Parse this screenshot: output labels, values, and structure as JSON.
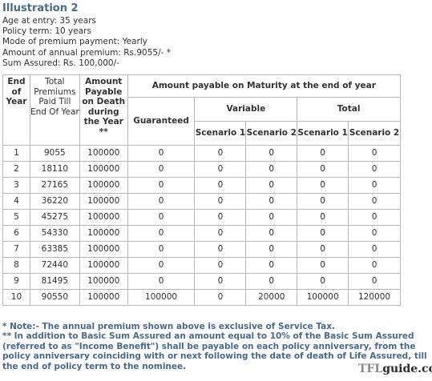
{
  "title": "Illustration 2",
  "info": [
    "Age at entry: 35 years",
    "Policy term: 10 years",
    "Mode of premium payment: Yearly",
    "Amount of annual premium: Rs.9055/- *",
    "Sum Assured: Rs. 100,000/-"
  ],
  "table": {
    "headers": {
      "end_of_year": "End of Year",
      "total_premiums": "Total Premiums Paid Till End Of Year",
      "amount_on_death": "Amount Payable on Death during the Year **",
      "maturity": "Amount payable on Maturity at the end of year",
      "guaranteed": "Guaranteed",
      "variable": "Variable",
      "total": "Total",
      "scenario1": "Scenario 1",
      "scenario2": "Scenario 2"
    },
    "rows": [
      [
        "1",
        "9055",
        "100000",
        "0",
        "0",
        "0",
        "0",
        "0"
      ],
      [
        "2",
        "18110",
        "100000",
        "0",
        "0",
        "0",
        "0",
        "0"
      ],
      [
        "3",
        "27165",
        "100000",
        "0",
        "0",
        "0",
        "0",
        "0"
      ],
      [
        "4",
        "36220",
        "100000",
        "0",
        "0",
        "0",
        "0",
        "0"
      ],
      [
        "5",
        "45275",
        "100000",
        "0",
        "0",
        "0",
        "0",
        "0"
      ],
      [
        "6",
        "54330",
        "100000",
        "0",
        "0",
        "0",
        "0",
        "0"
      ],
      [
        "7",
        "63385",
        "100000",
        "0",
        "0",
        "0",
        "0",
        "0"
      ],
      [
        "8",
        "72440",
        "100000",
        "0",
        "0",
        "0",
        "0",
        "0"
      ],
      [
        "9",
        "81495",
        "100000",
        "0",
        "0",
        "0",
        "0",
        "0"
      ],
      [
        "10",
        "90550",
        "100000",
        "100000",
        "0",
        "20000",
        "100000",
        "120000"
      ]
    ]
  },
  "notes": {
    "note1": "* Note:- The annual premium shown above is exclusive of Service Tax.",
    "note2": "** In addition to Basic Sum Assured an amount equal to 10% of the Basic Sum Assured (referred to as \"Income Benefit\") shall be payable on each policy anniversary, from the policy anniversary coinciding with or next following the date of death of Life Assured, till the end of policy term to the nominee."
  },
  "watermark": {
    "tfl": "TFL",
    "rest": "guide.com"
  }
}
